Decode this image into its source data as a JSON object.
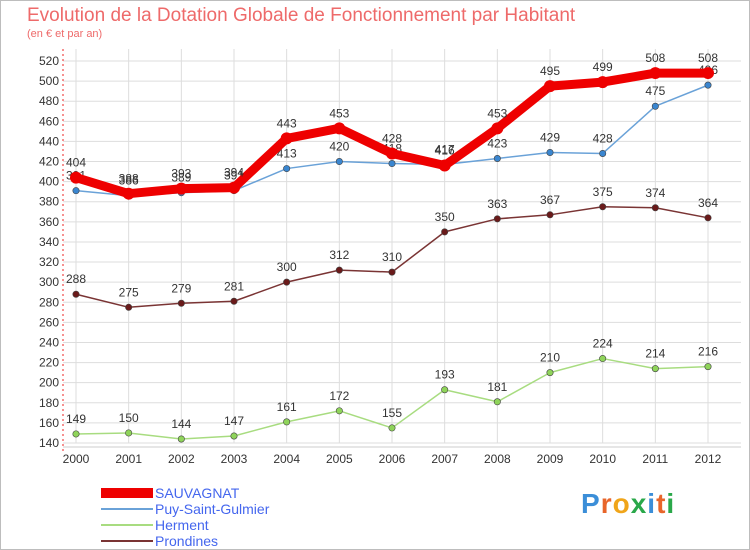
{
  "header": {
    "title": "Evolution de la Dotation Globale de Fonctionnement par Habitant",
    "subtitle": "(en € et par an)"
  },
  "logo": {
    "text": "Proxiti",
    "colors": [
      "#3b8ed8",
      "#e8652a",
      "#f0a51a",
      "#2aa84a",
      "#3b8ed8",
      "#e8652a",
      "#2aa84a"
    ]
  },
  "chart_data": {
    "type": "line",
    "title": "Evolution de la Dotation Globale de Fonctionnement par Habitant",
    "subtitle": "(en € et par an)",
    "x": [
      2000,
      2001,
      2002,
      2003,
      2004,
      2005,
      2006,
      2007,
      2008,
      2009,
      2010,
      2011,
      2012
    ],
    "ylim": [
      140,
      520
    ],
    "yticks": [
      140,
      160,
      180,
      200,
      220,
      240,
      260,
      280,
      300,
      320,
      340,
      360,
      380,
      400,
      420,
      440,
      460,
      480,
      500,
      520
    ],
    "grid": true,
    "legend_position": "bottom-left",
    "series": [
      {
        "name": "SAUVAGNAT",
        "color": "#ee0000",
        "emphasis": true,
        "values": [
          404,
          388,
          393,
          394,
          443,
          453,
          428,
          416,
          453,
          495,
          499,
          508,
          508
        ]
      },
      {
        "name": "Puy-Saint-Gulmier",
        "color": "#6aa2d8",
        "marker": "#3a86d0",
        "values": [
          391,
          386,
          389,
          391,
          413,
          420,
          418,
          417,
          423,
          429,
          428,
          475,
          496
        ]
      },
      {
        "name": "Herment",
        "color": "#a8dc80",
        "marker": "#8fd45a",
        "values": [
          149,
          150,
          144,
          147,
          161,
          172,
          155,
          193,
          181,
          210,
          224,
          214,
          216
        ]
      },
      {
        "name": "Prondines",
        "color": "#7a3434",
        "marker": "#6a1a1a",
        "values": [
          288,
          275,
          279,
          281,
          300,
          312,
          310,
          350,
          363,
          367,
          375,
          374,
          364
        ]
      }
    ]
  }
}
